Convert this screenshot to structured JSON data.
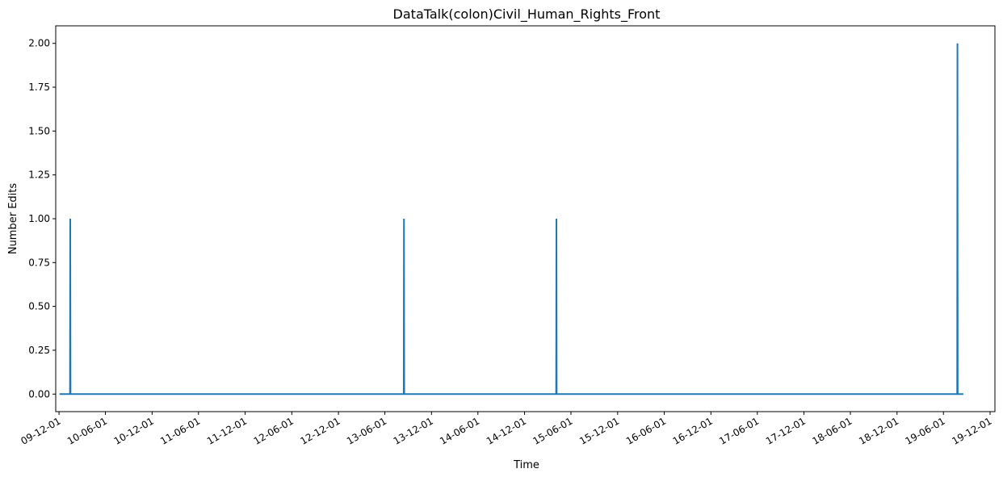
{
  "chart_data": {
    "type": "line",
    "title": "DataTalk(colon)Civil_Human_Rights_Front",
    "xlabel": "Time",
    "ylabel": "Number Edits",
    "ylim": [
      -0.1,
      2.1
    ],
    "xlim": [
      "2009-11-18",
      "2019-12-20"
    ],
    "grid": false,
    "x_ticks": [
      {
        "date": "2009-12-01",
        "label": "09-12-01"
      },
      {
        "date": "2010-06-01",
        "label": "10-06-01"
      },
      {
        "date": "2010-12-01",
        "label": "10-12-01"
      },
      {
        "date": "2011-06-01",
        "label": "11-06-01"
      },
      {
        "date": "2011-12-01",
        "label": "11-12-01"
      },
      {
        "date": "2012-06-01",
        "label": "12-06-01"
      },
      {
        "date": "2012-12-01",
        "label": "12-12-01"
      },
      {
        "date": "2013-06-01",
        "label": "13-06-01"
      },
      {
        "date": "2013-12-01",
        "label": "13-12-01"
      },
      {
        "date": "2014-06-01",
        "label": "14-06-01"
      },
      {
        "date": "2014-12-01",
        "label": "14-12-01"
      },
      {
        "date": "2015-06-01",
        "label": "15-06-01"
      },
      {
        "date": "2015-12-01",
        "label": "15-12-01"
      },
      {
        "date": "2016-06-01",
        "label": "16-06-01"
      },
      {
        "date": "2016-12-01",
        "label": "16-12-01"
      },
      {
        "date": "2017-06-01",
        "label": "17-06-01"
      },
      {
        "date": "2017-12-01",
        "label": "17-12-01"
      },
      {
        "date": "2018-06-01",
        "label": "18-06-01"
      },
      {
        "date": "2018-12-01",
        "label": "18-12-01"
      },
      {
        "date": "2019-06-01",
        "label": "19-06-01"
      },
      {
        "date": "2019-12-01",
        "label": "19-12-01"
      }
    ],
    "y_ticks": [
      {
        "value": 0.0,
        "label": "0.00"
      },
      {
        "value": 0.25,
        "label": "0.25"
      },
      {
        "value": 0.5,
        "label": "0.50"
      },
      {
        "value": 0.75,
        "label": "0.75"
      },
      {
        "value": 1.0,
        "label": "1.00"
      },
      {
        "value": 1.25,
        "label": "1.25"
      },
      {
        "value": 1.5,
        "label": "1.50"
      },
      {
        "value": 1.75,
        "label": "1.75"
      },
      {
        "value": 2.0,
        "label": "2.00"
      }
    ],
    "series": [
      {
        "color": "#1f77b4",
        "points": [
          {
            "x": "2009-12-03",
            "y": 0
          },
          {
            "x": "2010-01-13",
            "y": 0
          },
          {
            "x": "2010-01-14",
            "y": 1
          },
          {
            "x": "2010-01-15",
            "y": 0
          },
          {
            "x": "2013-08-14",
            "y": 0
          },
          {
            "x": "2013-08-15",
            "y": 1
          },
          {
            "x": "2013-08-16",
            "y": 0
          },
          {
            "x": "2015-04-04",
            "y": 0
          },
          {
            "x": "2015-04-05",
            "y": 1
          },
          {
            "x": "2015-04-06",
            "y": 0
          },
          {
            "x": "2019-07-25",
            "y": 0
          },
          {
            "x": "2019-07-26",
            "y": 2
          },
          {
            "x": "2019-07-27",
            "y": 0
          },
          {
            "x": "2019-08-18",
            "y": 0
          }
        ]
      }
    ]
  }
}
